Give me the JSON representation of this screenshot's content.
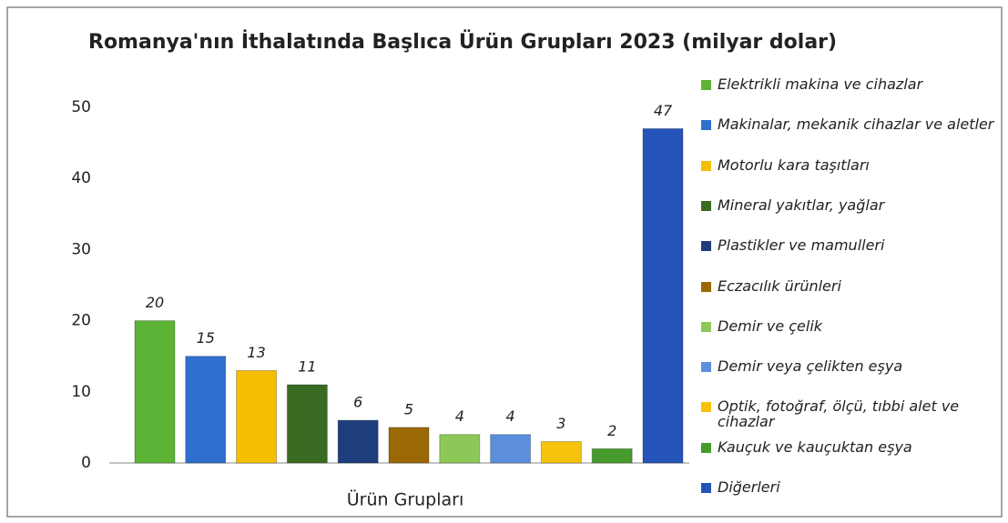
{
  "chart_data": {
    "type": "bar",
    "title": "Romanya'nın İthalatında Başlıca Ürün Grupları 2023 (milyar dolar)",
    "x_label": "Ürün Grupları",
    "ylim": [
      0,
      50
    ],
    "yticks": [
      0,
      10,
      20,
      30,
      40,
      50
    ],
    "grid": false,
    "legend": "right",
    "series": [
      {
        "name": "Elektrikli makina ve cihazlar",
        "color": "#5cb335",
        "values": [
          20
        ]
      },
      {
        "name": "Makinalar, mekanik cihazlar ve aletler",
        "color": "#2f6fd0",
        "values": [
          15
        ]
      },
      {
        "name": "Motorlu kara taşıtları",
        "color": "#f3bf00",
        "values": [
          13
        ]
      },
      {
        "name": "Mineral yakıtlar, yağlar",
        "color": "#3a6b22",
        "values": [
          11
        ]
      },
      {
        "name": "Plastikler ve mamulleri",
        "color": "#1e3d7c",
        "values": [
          6
        ]
      },
      {
        "name": "Eczacılık ürünleri",
        "color": "#9a6904",
        "values": [
          5
        ]
      },
      {
        "name": "Demir ve çelik",
        "color": "#8cc758",
        "values": [
          4
        ]
      },
      {
        "name": "Demir veya çelikten eşya",
        "color": "#5b8edb",
        "values": [
          4
        ]
      },
      {
        "name": "Optik, fotoğraf, ölçü, tıbbi alet ve cihazlar",
        "color": "#f5c20c",
        "values": [
          3
        ]
      },
      {
        "name": "Kauçuk ve kauçuktan eşya",
        "color": "#479a2c",
        "values": [
          2
        ]
      },
      {
        "name": "Diğerleri",
        "color": "#2454b9",
        "values": [
          47
        ]
      }
    ]
  }
}
